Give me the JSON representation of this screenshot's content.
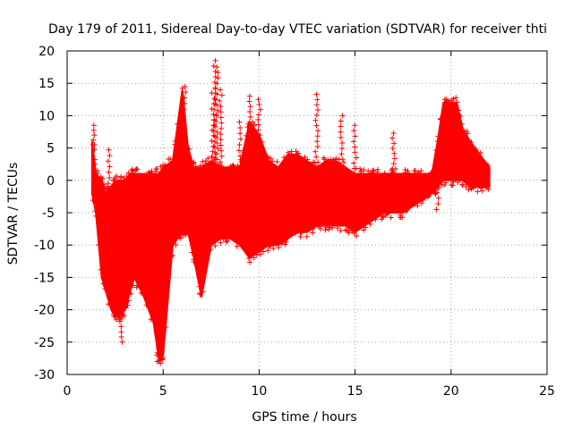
{
  "chart_data": {
    "type": "scatter",
    "title": "Day 179 of 2011, Sidereal Day-to-day VTEC variation (SDTVAR) for receiver thti",
    "xlabel": "GPS time / hours",
    "ylabel": "SDTVAR / TECUs",
    "xlim": [
      0,
      25
    ],
    "ylim": [
      -30,
      20
    ],
    "xticks": [
      0,
      5,
      10,
      15,
      20,
      25
    ],
    "yticks": [
      -30,
      -25,
      -20,
      -15,
      -10,
      -5,
      0,
      5,
      10,
      15,
      20
    ],
    "grid": true,
    "marker": "+",
    "color": "#ff0000",
    "series": [
      {
        "name": "SDTVAR",
        "envelope": {
          "x": [
            1.3,
            1.5,
            1.8,
            2.0,
            2.3,
            2.5,
            2.8,
            3.0,
            3.3,
            3.5,
            4.0,
            4.5,
            4.8,
            5.0,
            5.5,
            6.0,
            6.3,
            6.6,
            7.0,
            7.5,
            8.0,
            8.5,
            9.0,
            9.5,
            10.0,
            10.5,
            11.0,
            11.5,
            12.0,
            12.5,
            13.0,
            13.5,
            14.0,
            14.5,
            15.0,
            15.5,
            16.0,
            16.5,
            17.0,
            17.5,
            18.0,
            18.5,
            19.0,
            19.3,
            19.6,
            20.0,
            20.3,
            20.6,
            21.0,
            21.5,
            22.0
          ],
          "upper": [
            6,
            1,
            0,
            -2,
            -1,
            0,
            0,
            0,
            1,
            1,
            1,
            1,
            1,
            2,
            3,
            14,
            5,
            2,
            2,
            3,
            2,
            2,
            2,
            9,
            7,
            3,
            2,
            4,
            4,
            3,
            2,
            3,
            3,
            2,
            1,
            1,
            1,
            1,
            1,
            1,
            1,
            1,
            1,
            6,
            12,
            12,
            12,
            8,
            6,
            4,
            2
          ],
          "lower": [
            -2,
            -5,
            -15,
            -17,
            -20,
            -21,
            -21,
            -20,
            -17,
            -15,
            -18,
            -22,
            -28,
            -27,
            -10,
            -8,
            -8,
            -12,
            -18,
            -10,
            -9,
            -9,
            -10,
            -12,
            -11,
            -10,
            -10,
            -9,
            -8,
            -8,
            -7,
            -7,
            -7,
            -7,
            -8,
            -7,
            -6,
            -5,
            -5,
            -5,
            -4,
            -3,
            -2,
            -1,
            0,
            0,
            0,
            0,
            -1,
            -1,
            -1
          ]
        },
        "spikes": [
          {
            "x": 1.35,
            "y": 8.5
          },
          {
            "x": 2.2,
            "y": 4.7
          },
          {
            "x": 2.8,
            "y": -25
          },
          {
            "x": 4.7,
            "y": -28
          },
          {
            "x": 6.1,
            "y": 14.5
          },
          {
            "x": 7.6,
            "y": 13.5
          },
          {
            "x": 7.7,
            "y": 18.5
          },
          {
            "x": 7.8,
            "y": 17.5
          },
          {
            "x": 8.0,
            "y": 14.0
          },
          {
            "x": 9.0,
            "y": 9.0
          },
          {
            "x": 9.5,
            "y": 13.0
          },
          {
            "x": 10.0,
            "y": 12.5
          },
          {
            "x": 13.0,
            "y": 13.3
          },
          {
            "x": 14.3,
            "y": 10.0
          },
          {
            "x": 15.0,
            "y": 8.5
          },
          {
            "x": 17.0,
            "y": 7.3
          },
          {
            "x": 19.3,
            "y": -4.5
          },
          {
            "x": 19.8,
            "y": 12.5
          }
        ]
      }
    ]
  }
}
